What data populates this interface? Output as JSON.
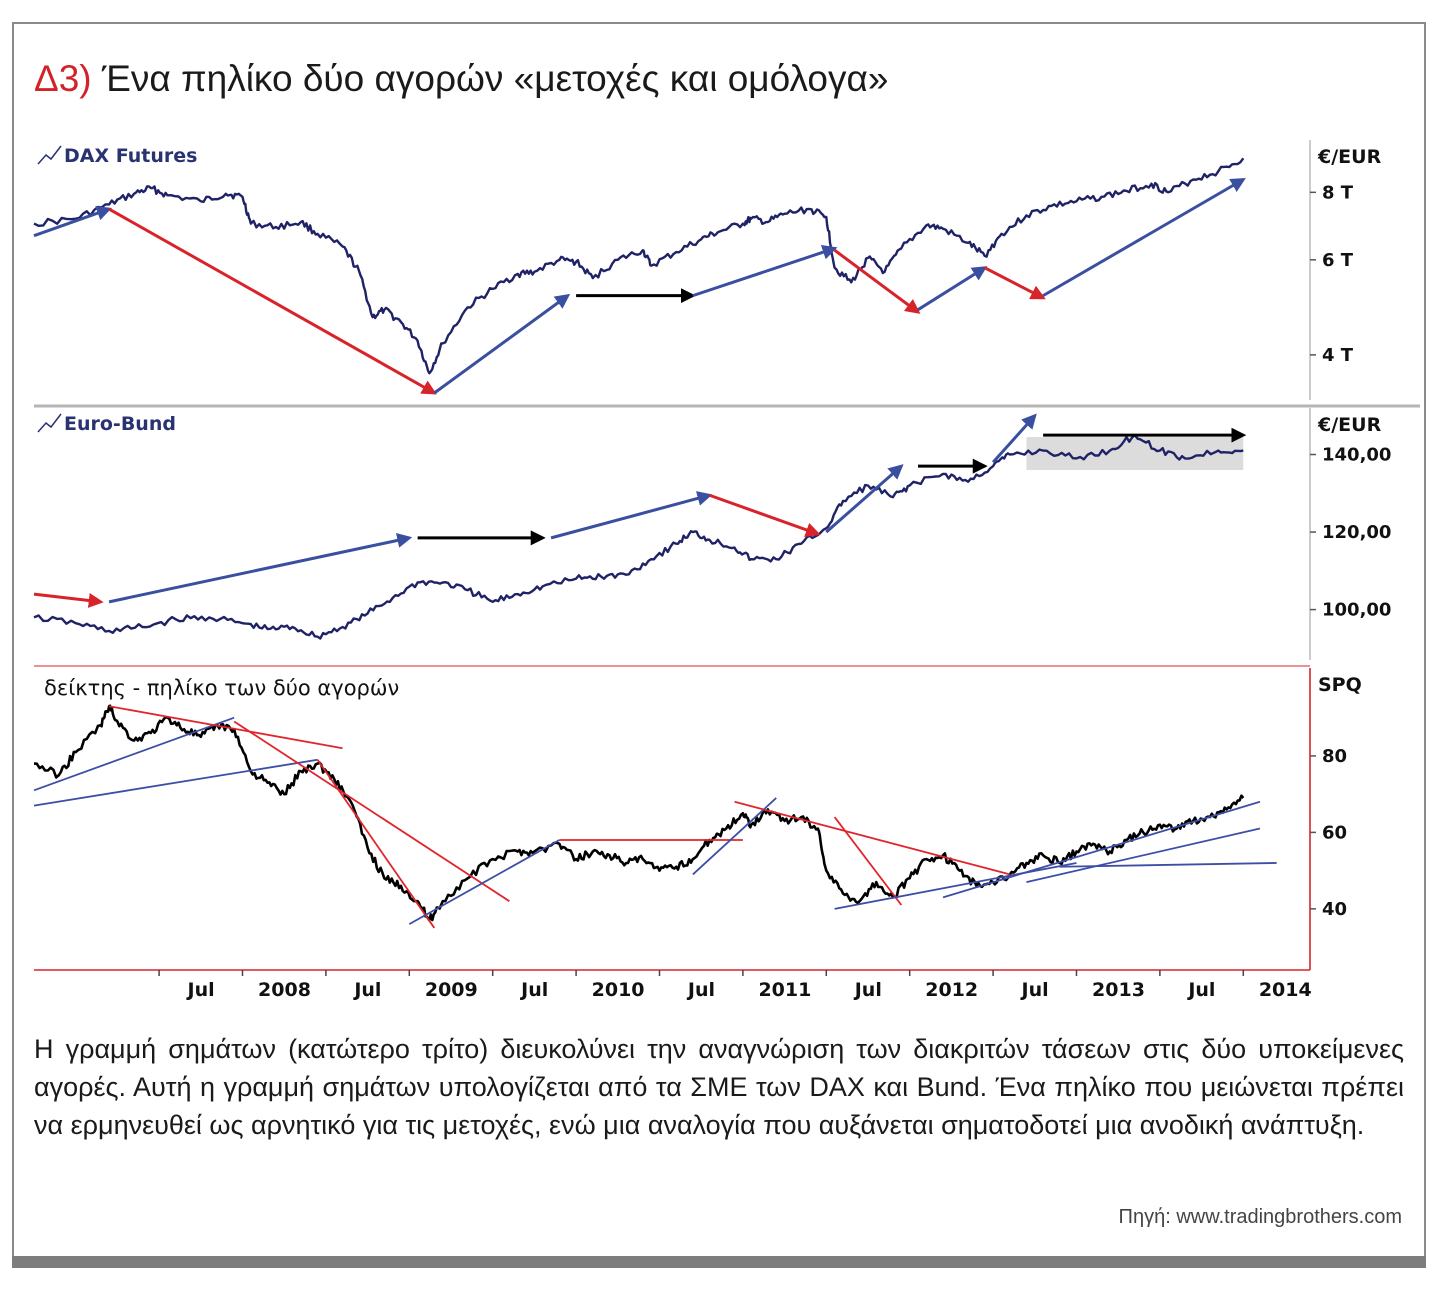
{
  "title": {
    "prefix": "Δ3)",
    "text": "Ένα πηλίκο δύο αγορών «μετοχές και ομόλογα»"
  },
  "description": "Η γραμμή σημάτων (κατώτερο τρίτο) διευκολύνει την αναγνώριση των διακριτών τάσεων στις δύο υποκείμενες αγορές. Αυτή η γραμμή σημάτων υπολογίζεται από τα ΣΜΕ των DAX και Bund. Ένα πηλίκο που μειώνεται πρέπει να ερμηνευθεί ως αρνητικό για τις μετοχές, ενώ μια αναλογία που αυξάνεται σηματοδοτεί μια ανοδική ανάπτυξη.",
  "source": "Πηγή: www.tradingbrothers.com",
  "colors": {
    "series": "#1f2366",
    "up": "#3a4fa0",
    "down": "#d9232b",
    "flat": "#000000",
    "trend_blue": "#3d4ea6",
    "trend_red": "#e0262c",
    "range_box": "#dcdcdc",
    "title_accent": "#d2232a"
  },
  "chart_data": [
    {
      "type": "line",
      "name": "dax",
      "label": "DAX Futures",
      "unit": "€/EUR",
      "y_scale": "log",
      "ylim": [
        3300,
        10000
      ],
      "y_ticks": [
        4000,
        6000,
        8000
      ],
      "y_tick_labels": [
        "4 T",
        "6 T",
        "8 T"
      ],
      "points": [
        [
          2006.75,
          7000
        ],
        [
          2007.0,
          7150
        ],
        [
          2007.2,
          7600
        ],
        [
          2007.35,
          7950
        ],
        [
          2007.45,
          8150
        ],
        [
          2007.55,
          7900
        ],
        [
          2007.75,
          7700
        ],
        [
          2007.9,
          7950
        ],
        [
          2008.0,
          7850
        ],
        [
          2008.05,
          7000
        ],
        [
          2008.2,
          6900
        ],
        [
          2008.35,
          7050
        ],
        [
          2008.45,
          6700
        ],
        [
          2008.6,
          6350
        ],
        [
          2008.7,
          5700
        ],
        [
          2008.78,
          4700
        ],
        [
          2008.85,
          4850
        ],
        [
          2008.95,
          4600
        ],
        [
          2009.05,
          4250
        ],
        [
          2009.12,
          3700
        ],
        [
          2009.2,
          4200
        ],
        [
          2009.35,
          4900
        ],
        [
          2009.5,
          5300
        ],
        [
          2009.65,
          5650
        ],
        [
          2009.75,
          5700
        ],
        [
          2009.9,
          6000
        ],
        [
          2010.0,
          5950
        ],
        [
          2010.1,
          5550
        ],
        [
          2010.25,
          6000
        ],
        [
          2010.4,
          6250
        ],
        [
          2010.45,
          5850
        ],
        [
          2010.6,
          6200
        ],
        [
          2010.75,
          6550
        ],
        [
          2010.85,
          6750
        ],
        [
          2011.0,
          7000
        ],
        [
          2011.05,
          7150
        ],
        [
          2011.15,
          7050
        ],
        [
          2011.25,
          7300
        ],
        [
          2011.4,
          7450
        ],
        [
          2011.5,
          7200
        ],
        [
          2011.55,
          5800
        ],
        [
          2011.65,
          5450
        ],
        [
          2011.75,
          6050
        ],
        [
          2011.85,
          5700
        ],
        [
          2011.95,
          6300
        ],
        [
          2012.1,
          6950
        ],
        [
          2012.2,
          6850
        ],
        [
          2012.35,
          6450
        ],
        [
          2012.45,
          6100
        ],
        [
          2012.55,
          6700
        ],
        [
          2012.7,
          7250
        ],
        [
          2012.85,
          7550
        ],
        [
          2013.0,
          7700
        ],
        [
          2013.15,
          7850
        ],
        [
          2013.3,
          8050
        ],
        [
          2013.45,
          8300
        ],
        [
          2013.55,
          8000
        ],
        [
          2013.7,
          8450
        ],
        [
          2013.85,
          8750
        ],
        [
          2014.0,
          9250
        ]
      ],
      "arrows": [
        {
          "from": [
            2006.75,
            6650
          ],
          "to": [
            2007.2,
            7450
          ],
          "kind": "up"
        },
        {
          "from": [
            2007.2,
            7450
          ],
          "to": [
            2009.15,
            3400
          ],
          "kind": "down"
        },
        {
          "from": [
            2009.15,
            3400
          ],
          "to": [
            2009.95,
            5150
          ],
          "kind": "up"
        },
        {
          "from": [
            2010.0,
            5150
          ],
          "to": [
            2010.7,
            5150
          ],
          "kind": "flat"
        },
        {
          "from": [
            2010.7,
            5150
          ],
          "to": [
            2011.55,
            6300
          ],
          "kind": "up"
        },
        {
          "from": [
            2011.55,
            6250
          ],
          "to": [
            2012.05,
            4800
          ],
          "kind": "down"
        },
        {
          "from": [
            2012.05,
            4850
          ],
          "to": [
            2012.45,
            5800
          ],
          "kind": "up"
        },
        {
          "from": [
            2012.45,
            5800
          ],
          "to": [
            2012.8,
            5100
          ],
          "kind": "down"
        },
        {
          "from": [
            2012.8,
            5150
          ],
          "to": [
            2014.0,
            8450
          ],
          "kind": "up"
        }
      ]
    },
    {
      "type": "line",
      "name": "bund",
      "label": "Euro-Bund",
      "unit": "€/EUR",
      "ylim": [
        87,
        152
      ],
      "y_ticks": [
        100,
        120,
        140
      ],
      "y_tick_labels": [
        "100,00",
        "120,00",
        "140,00"
      ],
      "points": [
        [
          2006.75,
          98
        ],
        [
          2007.0,
          96.5
        ],
        [
          2007.2,
          94.5
        ],
        [
          2007.4,
          95.5
        ],
        [
          2007.6,
          97.5
        ],
        [
          2007.8,
          98
        ],
        [
          2008.0,
          96.5
        ],
        [
          2008.15,
          95
        ],
        [
          2008.3,
          95.5
        ],
        [
          2008.45,
          93
        ],
        [
          2008.6,
          95.5
        ],
        [
          2008.75,
          99
        ],
        [
          2008.9,
          103
        ],
        [
          2009.05,
          107
        ],
        [
          2009.2,
          107
        ],
        [
          2009.35,
          105
        ],
        [
          2009.5,
          102
        ],
        [
          2009.65,
          104
        ],
        [
          2009.8,
          106
        ],
        [
          2010.0,
          108
        ],
        [
          2010.15,
          108.5
        ],
        [
          2010.3,
          109
        ],
        [
          2010.45,
          113
        ],
        [
          2010.6,
          117
        ],
        [
          2010.7,
          120
        ],
        [
          2010.8,
          118
        ],
        [
          2010.95,
          116
        ],
        [
          2011.05,
          113
        ],
        [
          2011.2,
          113
        ],
        [
          2011.35,
          117
        ],
        [
          2011.5,
          121
        ],
        [
          2011.6,
          128
        ],
        [
          2011.75,
          132
        ],
        [
          2011.9,
          129
        ],
        [
          2012.0,
          132
        ],
        [
          2012.2,
          135
        ],
        [
          2012.35,
          133
        ],
        [
          2012.5,
          137
        ],
        [
          2012.6,
          140
        ],
        [
          2012.8,
          141
        ],
        [
          2013.0,
          139
        ],
        [
          2013.2,
          141
        ],
        [
          2013.35,
          145
        ],
        [
          2013.5,
          141
        ],
        [
          2013.65,
          139
        ],
        [
          2013.85,
          141
        ],
        [
          2014.0,
          141
        ]
      ],
      "arrows": [
        {
          "from": [
            2006.75,
            104
          ],
          "to": [
            2007.15,
            102
          ],
          "kind": "down"
        },
        {
          "from": [
            2007.2,
            102
          ],
          "to": [
            2009.0,
            118.5
          ],
          "kind": "up"
        },
        {
          "from": [
            2009.05,
            118.5
          ],
          "to": [
            2009.8,
            118.5
          ],
          "kind": "flat"
        },
        {
          "from": [
            2009.85,
            118.5
          ],
          "to": [
            2010.8,
            129.5
          ],
          "kind": "up"
        },
        {
          "from": [
            2010.8,
            129.5
          ],
          "to": [
            2011.45,
            119.5
          ],
          "kind": "down"
        },
        {
          "from": [
            2011.5,
            120
          ],
          "to": [
            2011.95,
            137
          ],
          "kind": "up"
        },
        {
          "from": [
            2012.05,
            137
          ],
          "to": [
            2012.45,
            137
          ],
          "kind": "flat"
        },
        {
          "from": [
            2012.5,
            138
          ],
          "to": [
            2012.75,
            150
          ],
          "kind": "up"
        },
        {
          "from": [
            2012.8,
            145
          ],
          "to": [
            2014.0,
            145
          ],
          "kind": "flat"
        }
      ],
      "range_box": {
        "x": [
          2012.7,
          2014.0
        ],
        "y": [
          136,
          144.5
        ]
      }
    },
    {
      "type": "line",
      "name": "ratio",
      "label": "δείκτης - πηλίκο των δύο αγορών",
      "unit": "SPQ",
      "ylim": [
        24,
        103
      ],
      "y_ticks": [
        40,
        60,
        80
      ],
      "y_tick_labels": [
        "40",
        "60",
        "80"
      ],
      "x_ticks": [
        2007.5,
        2008.0,
        2008.5,
        2009.0,
        2009.5,
        2010.0,
        2010.5,
        2011.0,
        2011.5,
        2012.0,
        2012.5,
        2013.0,
        2013.5,
        2014.0
      ],
      "x_tick_labels": [
        "Jul",
        "2008",
        "Jul",
        "2009",
        "Jul",
        "2010",
        "Jul",
        "2011",
        "Jul",
        "2012",
        "Jul",
        "2013",
        "Jul",
        "2014"
      ],
      "points": [
        [
          2006.75,
          78
        ],
        [
          2006.9,
          75
        ],
        [
          2007.0,
          81
        ],
        [
          2007.15,
          88
        ],
        [
          2007.2,
          93
        ],
        [
          2007.25,
          89
        ],
        [
          2007.35,
          84
        ],
        [
          2007.45,
          86
        ],
        [
          2007.55,
          90
        ],
        [
          2007.65,
          87
        ],
        [
          2007.75,
          85
        ],
        [
          2007.85,
          88
        ],
        [
          2007.95,
          87
        ],
        [
          2008.05,
          76
        ],
        [
          2008.15,
          73
        ],
        [
          2008.25,
          70
        ],
        [
          2008.35,
          76
        ],
        [
          2008.45,
          78
        ],
        [
          2008.55,
          74
        ],
        [
          2008.65,
          68
        ],
        [
          2008.75,
          56
        ],
        [
          2008.85,
          48
        ],
        [
          2008.95,
          46
        ],
        [
          2009.05,
          42
        ],
        [
          2009.12,
          37
        ],
        [
          2009.2,
          42
        ],
        [
          2009.35,
          48
        ],
        [
          2009.5,
          53
        ],
        [
          2009.65,
          55
        ],
        [
          2009.75,
          55
        ],
        [
          2009.9,
          57
        ],
        [
          2010.0,
          53
        ],
        [
          2010.1,
          55
        ],
        [
          2010.2,
          54
        ],
        [
          2010.3,
          52
        ],
        [
          2010.4,
          53
        ],
        [
          2010.5,
          50
        ],
        [
          2010.6,
          51
        ],
        [
          2010.7,
          53
        ],
        [
          2010.8,
          58
        ],
        [
          2010.9,
          61
        ],
        [
          2011.0,
          65
        ],
        [
          2011.05,
          62
        ],
        [
          2011.15,
          66
        ],
        [
          2011.25,
          63
        ],
        [
          2011.35,
          64
        ],
        [
          2011.45,
          61
        ],
        [
          2011.5,
          50
        ],
        [
          2011.6,
          44
        ],
        [
          2011.7,
          42
        ],
        [
          2011.8,
          47
        ],
        [
          2011.9,
          43
        ],
        [
          2012.0,
          48
        ],
        [
          2012.1,
          53
        ],
        [
          2012.2,
          54
        ],
        [
          2012.3,
          50
        ],
        [
          2012.4,
          46
        ],
        [
          2012.5,
          47
        ],
        [
          2012.6,
          49
        ],
        [
          2012.7,
          52
        ],
        [
          2012.8,
          54
        ],
        [
          2012.9,
          52
        ],
        [
          2013.0,
          55
        ],
        [
          2013.1,
          57
        ],
        [
          2013.2,
          55
        ],
        [
          2013.3,
          58
        ],
        [
          2013.4,
          60
        ],
        [
          2013.5,
          62
        ],
        [
          2013.6,
          61
        ],
        [
          2013.7,
          63
        ],
        [
          2013.8,
          64
        ],
        [
          2013.9,
          66
        ],
        [
          2014.0,
          69
        ]
      ],
      "trend_lines": [
        {
          "from": [
            2006.75,
            71
          ],
          "to": [
            2007.95,
            90
          ],
          "kind": "up"
        },
        {
          "from": [
            2006.75,
            67
          ],
          "to": [
            2008.45,
            79
          ],
          "kind": "up"
        },
        {
          "from": [
            2007.2,
            93
          ],
          "to": [
            2008.6,
            82
          ],
          "kind": "down"
        },
        {
          "from": [
            2007.95,
            89
          ],
          "to": [
            2009.6,
            42
          ],
          "kind": "down"
        },
        {
          "from": [
            2008.45,
            79
          ],
          "to": [
            2009.15,
            35
          ],
          "kind": "down"
        },
        {
          "from": [
            2009.0,
            36
          ],
          "to": [
            2009.9,
            58
          ],
          "kind": "up"
        },
        {
          "from": [
            2009.9,
            58
          ],
          "to": [
            2011.0,
            58
          ],
          "kind": "down"
        },
        {
          "from": [
            2010.7,
            49
          ],
          "to": [
            2011.2,
            69
          ],
          "kind": "up"
        },
        {
          "from": [
            2010.95,
            68
          ],
          "to": [
            2012.6,
            49
          ],
          "kind": "down"
        },
        {
          "from": [
            2011.55,
            64
          ],
          "to": [
            2011.95,
            41
          ],
          "kind": "down"
        },
        {
          "from": [
            2011.55,
            40
          ],
          "to": [
            2013.0,
            52
          ],
          "kind": "up"
        },
        {
          "from": [
            2012.2,
            43
          ],
          "to": [
            2014.1,
            68
          ],
          "kind": "up"
        },
        {
          "from": [
            2012.7,
            47
          ],
          "to": [
            2014.1,
            61
          ],
          "kind": "up"
        },
        {
          "from": [
            2012.9,
            51
          ],
          "to": [
            2014.2,
            52
          ],
          "kind": "up"
        }
      ]
    }
  ]
}
